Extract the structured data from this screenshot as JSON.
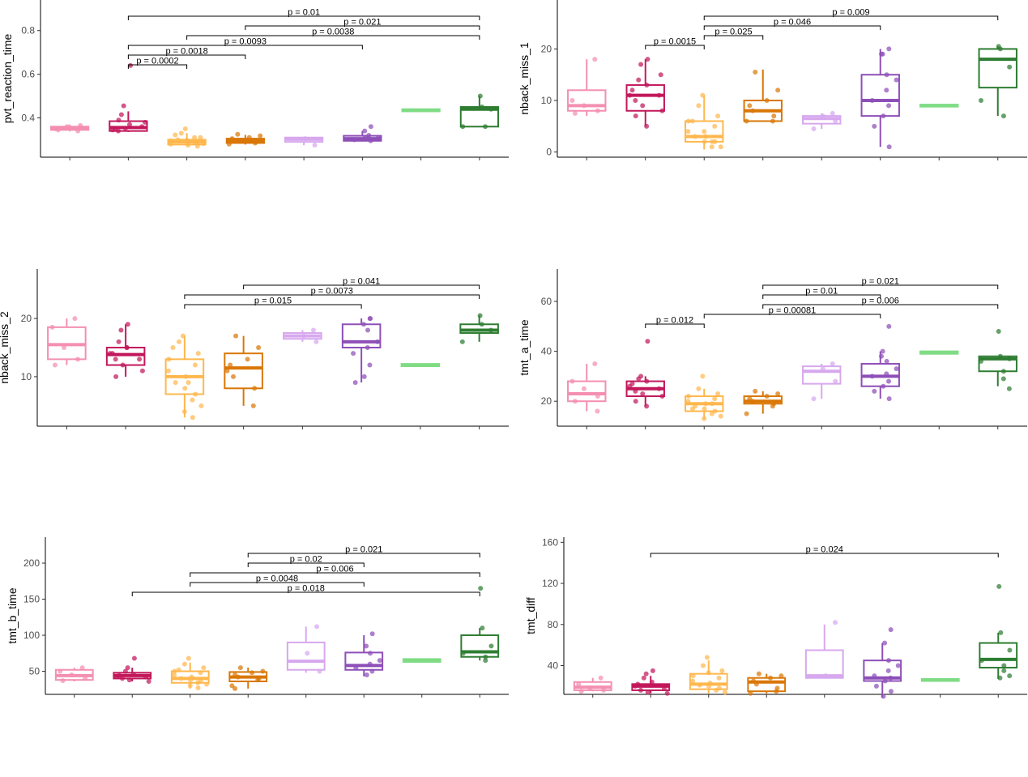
{
  "palette": [
    "#f48fb1",
    "#c2185b",
    "#ffb74d",
    "#d97706",
    "#d7a8ee",
    "#8e4fb8",
    "#7fdc84",
    "#2e7d32"
  ],
  "chart_data": [
    {
      "type": "box",
      "ylabel": "pvt_reaction_time",
      "ylim": [
        0.22,
        0.94
      ],
      "yticks": [
        0.4,
        0.6,
        0.8
      ],
      "ytick_labels": [
        "0.4",
        "0.6",
        "0.8"
      ],
      "groups": [
        {
          "q1": 0.345,
          "median": 0.352,
          "q3": 0.36,
          "wlo": 0.338,
          "whi": 0.37,
          "points": [
            0.34,
            0.35,
            0.36,
            0.355,
            0.345,
            0.365
          ]
        },
        {
          "q1": 0.34,
          "median": 0.356,
          "q3": 0.385,
          "wlo": 0.335,
          "whi": 0.43,
          "points": [
            0.64,
            0.455,
            0.415,
            0.37,
            0.35,
            0.345,
            0.36,
            0.34,
            0.352,
            0.38,
            0.39
          ]
        },
        {
          "q1": 0.278,
          "median": 0.29,
          "q3": 0.3,
          "wlo": 0.27,
          "whi": 0.33,
          "points": [
            0.35,
            0.33,
            0.31,
            0.295,
            0.285,
            0.28,
            0.275,
            0.3,
            0.29,
            0.27,
            0.31,
            0.282,
            0.298,
            0.288,
            0.322
          ]
        },
        {
          "q1": 0.285,
          "median": 0.295,
          "q3": 0.305,
          "wlo": 0.278,
          "whi": 0.322,
          "points": [
            0.325,
            0.318,
            0.31,
            0.3,
            0.295,
            0.29,
            0.285,
            0.28,
            0.305
          ]
        },
        {
          "q1": 0.29,
          "median": 0.302,
          "q3": 0.31,
          "wlo": 0.275,
          "whi": 0.31,
          "points": [
            0.275,
            0.305
          ]
        },
        {
          "q1": 0.295,
          "median": 0.305,
          "q3": 0.318,
          "wlo": 0.292,
          "whi": 0.34,
          "points": [
            0.36,
            0.34,
            0.32,
            0.31,
            0.305,
            0.3,
            0.295,
            0.312
          ]
        },
        {
          "q1": 0.43,
          "median": 0.435,
          "q3": 0.44,
          "wlo": 0.43,
          "whi": 0.44,
          "points": []
        },
        {
          "q1": 0.36,
          "median": 0.44,
          "q3": 0.45,
          "wlo": 0.36,
          "whi": 0.5,
          "points": [
            0.5,
            0.45,
            0.44,
            0.36,
            0.36
          ]
        }
      ],
      "comparisons": [
        {
          "from": 2,
          "to": 8,
          "p": "p = 0.01"
        },
        {
          "from": 4,
          "to": 8,
          "p": "p = 0.021"
        },
        {
          "from": 3,
          "to": 8,
          "p": "p = 0.0038"
        },
        {
          "from": 2,
          "to": 6,
          "p": "p = 0.0093"
        },
        {
          "from": 2,
          "to": 4,
          "p": "p = 0.0018"
        },
        {
          "from": 2,
          "to": 3,
          "p": "p = 0.0002"
        }
      ]
    },
    {
      "type": "box",
      "ylabel": "nback_miss_1",
      "ylim": [
        -1,
        29.5
      ],
      "yticks": [
        0,
        10,
        20
      ],
      "ytick_labels": [
        "0",
        "10",
        "20"
      ],
      "groups": [
        {
          "q1": 8,
          "median": 9,
          "q3": 12,
          "wlo": 7,
          "whi": 18,
          "points": [
            18,
            10,
            9,
            8,
            7.5
          ]
        },
        {
          "q1": 8,
          "median": 11,
          "q3": 13,
          "wlo": 5,
          "whi": 18,
          "points": [
            18,
            17,
            14,
            13,
            12,
            11,
            11,
            10,
            9,
            8,
            7,
            5,
            15
          ]
        },
        {
          "q1": 2,
          "median": 3,
          "q3": 6,
          "wlo": 0.5,
          "whi": 11,
          "points": [
            11,
            9,
            7,
            6,
            5,
            4,
            3,
            3,
            2,
            2,
            1,
            1,
            4,
            2,
            6
          ]
        },
        {
          "q1": 6,
          "median": 8,
          "q3": 10,
          "wlo": 6,
          "whi": 16,
          "points": [
            15.5,
            12,
            10,
            9,
            8,
            7,
            6,
            6
          ]
        },
        {
          "q1": 5.5,
          "median": 6.5,
          "q3": 7,
          "wlo": 4.5,
          "whi": 7.5,
          "points": [
            7.5,
            7,
            6,
            4.5
          ]
        },
        {
          "q1": 7,
          "median": 10,
          "q3": 15,
          "wlo": 1,
          "whi": 20,
          "points": [
            20,
            19,
            15,
            14,
            12,
            10,
            9,
            7,
            5,
            1,
            19
          ]
        },
        {
          "q1": 8.8,
          "median": 9,
          "q3": 9.2,
          "wlo": 8.8,
          "whi": 9.2,
          "points": []
        },
        {
          "q1": 12.5,
          "median": 18,
          "q3": 20,
          "wlo": 7,
          "whi": 20.5,
          "points": [
            20.5,
            20,
            16.5,
            10,
            7
          ]
        }
      ],
      "comparisons": [
        {
          "from": 3,
          "to": 8,
          "p": "p = 0.009"
        },
        {
          "from": 3,
          "to": 6,
          "p": "p = 0.046"
        },
        {
          "from": 3,
          "to": 4,
          "p": "p = 0.025"
        },
        {
          "from": 2,
          "to": 3,
          "p": "p = 0.0015"
        }
      ]
    },
    {
      "type": "box",
      "ylabel": "nback_miss_2",
      "ylim": [
        1.5,
        28.5
      ],
      "yticks": [
        10,
        20
      ],
      "ytick_labels": [
        "10",
        "20"
      ],
      "groups": [
        {
          "q1": 13,
          "median": 15.5,
          "q3": 18.5,
          "wlo": 12,
          "whi": 20,
          "points": [
            20,
            18.5,
            15,
            13,
            12
          ]
        },
        {
          "q1": 12,
          "median": 13.8,
          "q3": 15,
          "wlo": 10,
          "whi": 19,
          "points": [
            19,
            18,
            16,
            15,
            14,
            14,
            13,
            13,
            12,
            11,
            10,
            15
          ]
        },
        {
          "q1": 7,
          "median": 10,
          "q3": 13,
          "wlo": 3,
          "whi": 17,
          "points": [
            17,
            16,
            14,
            13,
            12,
            11,
            10,
            9,
            8,
            7,
            6,
            5,
            4,
            3,
            15,
            9
          ]
        },
        {
          "q1": 8,
          "median": 11.5,
          "q3": 14,
          "wlo": 5,
          "whi": 17,
          "points": [
            17,
            15,
            13,
            12,
            10,
            8,
            5,
            11
          ]
        },
        {
          "q1": 16.5,
          "median": 17,
          "q3": 17.5,
          "wlo": 16,
          "whi": 18,
          "points": [
            18,
            17,
            16
          ]
        },
        {
          "q1": 15,
          "median": 16,
          "q3": 19,
          "wlo": 9,
          "whi": 20,
          "points": [
            20,
            19,
            18,
            16,
            15,
            14,
            12,
            10,
            9,
            20
          ]
        },
        {
          "q1": 11.8,
          "median": 12,
          "q3": 12.2,
          "wlo": 11.8,
          "whi": 12.2,
          "points": []
        },
        {
          "q1": 17.5,
          "median": 18,
          "q3": 19,
          "wlo": 16,
          "whi": 20.5,
          "points": [
            20.5,
            19,
            18,
            16
          ]
        }
      ],
      "comparisons": [
        {
          "from": 4,
          "to": 8,
          "p": "p = 0.041"
        },
        {
          "from": 3,
          "to": 8,
          "p": "p = 0.0073"
        },
        {
          "from": 3,
          "to": 6,
          "p": "p = 0.015"
        }
      ]
    },
    {
      "type": "box",
      "ylabel": "tmt_a_time",
      "ylim": [
        10,
        73
      ],
      "yticks": [
        20,
        40,
        60
      ],
      "ytick_labels": [
        "20",
        "40",
        "60"
      ],
      "groups": [
        {
          "q1": 20,
          "median": 23,
          "q3": 28,
          "wlo": 16,
          "whi": 35,
          "points": [
            35,
            28,
            25,
            22,
            20,
            16
          ]
        },
        {
          "q1": 22,
          "median": 25,
          "q3": 28,
          "wlo": 18,
          "whi": 30,
          "points": [
            44,
            30,
            29,
            28,
            27,
            26,
            25,
            24,
            23,
            22,
            20,
            18
          ]
        },
        {
          "q1": 16,
          "median": 19,
          "q3": 22,
          "wlo": 13,
          "whi": 25,
          "points": [
            30,
            25,
            23,
            22,
            21,
            20,
            19,
            18,
            17,
            16,
            15,
            14,
            13,
            19,
            17
          ]
        },
        {
          "q1": 19,
          "median": 20,
          "q3": 22,
          "wlo": 15,
          "whi": 24,
          "points": [
            24,
            23,
            22,
            21,
            20,
            19,
            18,
            15
          ]
        },
        {
          "q1": 27,
          "median": 32,
          "q3": 34,
          "wlo": 21,
          "whi": 35,
          "points": [
            35,
            33,
            28,
            21
          ]
        },
        {
          "q1": 26,
          "median": 30,
          "q3": 35,
          "wlo": 21,
          "whi": 40,
          "points": [
            50,
            40,
            36,
            33,
            31,
            30,
            28,
            26,
            24,
            21,
            38
          ]
        },
        {
          "q1": 39,
          "median": 39.5,
          "q3": 40,
          "wlo": 39,
          "whi": 40,
          "points": []
        },
        {
          "q1": 32,
          "median": 37,
          "q3": 38,
          "wlo": 26,
          "whi": 38,
          "points": [
            48,
            38,
            37,
            36,
            32,
            29,
            25
          ]
        }
      ],
      "comparisons": [
        {
          "from": 4,
          "to": 8,
          "p": "p = 0.021"
        },
        {
          "from": 4,
          "to": 6,
          "p": "p = 0.01"
        },
        {
          "from": 4,
          "to": 8,
          "p": "p = 0.006"
        },
        {
          "from": 3,
          "to": 6,
          "p": "p = 0.00081"
        },
        {
          "from": 2,
          "to": 3,
          "p": "p = 0.012"
        }
      ]
    },
    {
      "type": "box",
      "ylabel": "tmt_b_time",
      "ylim": [
        18,
        236
      ],
      "yticks": [
        50,
        100,
        150,
        200
      ],
      "ytick_labels": [
        "50",
        "100",
        "150",
        "200"
      ],
      "groups": [
        {
          "q1": 38,
          "median": 44,
          "q3": 52,
          "wlo": 36,
          "whi": 55,
          "points": [
            55,
            50,
            45,
            40,
            37
          ]
        },
        {
          "q1": 40,
          "median": 44,
          "q3": 48,
          "wlo": 36,
          "whi": 55,
          "points": [
            68,
            55,
            50,
            46,
            44,
            43,
            42,
            40,
            38,
            36
          ]
        },
        {
          "q1": 34,
          "median": 40,
          "q3": 50,
          "wlo": 26,
          "whi": 62,
          "points": [
            68,
            60,
            55,
            50,
            48,
            45,
            42,
            40,
            38,
            36,
            34,
            32,
            30,
            27,
            52
          ]
        },
        {
          "q1": 36,
          "median": 42,
          "q3": 49,
          "wlo": 26,
          "whi": 55,
          "points": [
            55,
            50,
            48,
            45,
            42,
            40,
            38,
            30,
            26
          ]
        },
        {
          "q1": 52,
          "median": 64,
          "q3": 90,
          "wlo": 48,
          "whi": 112,
          "points": [
            112,
            75,
            50
          ]
        },
        {
          "q1": 52,
          "median": 58,
          "q3": 76,
          "wlo": 43,
          "whi": 100,
          "points": [
            102,
            85,
            75,
            65,
            60,
            55,
            50,
            45
          ]
        },
        {
          "q1": 63,
          "median": 65,
          "q3": 67,
          "wlo": 63,
          "whi": 67,
          "points": []
        },
        {
          "q1": 70,
          "median": 77,
          "q3": 100,
          "wlo": 65,
          "whi": 110,
          "points": [
            165,
            110,
            85,
            75,
            70,
            65
          ]
        }
      ],
      "comparisons": [
        {
          "from": 4,
          "to": 8,
          "p": "p = 0.021"
        },
        {
          "from": 4,
          "to": 6,
          "p": "p = 0.02"
        },
        {
          "from": 3,
          "to": 8,
          "p": "p = 0.006"
        },
        {
          "from": 3,
          "to": 6,
          "p": "p = 0.0048"
        },
        {
          "from": 2,
          "to": 8,
          "p": "p = 0.018"
        }
      ]
    },
    {
      "type": "box",
      "ylabel": "tmt_diff",
      "ylim": [
        12,
        165
      ],
      "yticks": [
        40,
        80,
        120,
        160
      ],
      "ytick_labels": [
        "40",
        "80",
        "120",
        "160"
      ],
      "groups": [
        {
          "q1": 16,
          "median": 19,
          "q3": 24,
          "wlo": 15,
          "whi": 28,
          "points": [
            28,
            22,
            18,
            16,
            15
          ]
        },
        {
          "q1": 16,
          "median": 20,
          "q3": 22,
          "wlo": 13,
          "whi": 30,
          "points": [
            35,
            32,
            28,
            24,
            22,
            20,
            18,
            16,
            14,
            13
          ]
        },
        {
          "q1": 17,
          "median": 22,
          "q3": 32,
          "wlo": 13,
          "whi": 45,
          "points": [
            48,
            40,
            35,
            30,
            28,
            25,
            23,
            21,
            20,
            18,
            16,
            14,
            33
          ]
        },
        {
          "q1": 15,
          "median": 24,
          "q3": 28,
          "wlo": 13,
          "whi": 32,
          "points": [
            32,
            30,
            28,
            25,
            22,
            18,
            15,
            13
          ]
        },
        {
          "q1": 28,
          "median": 30,
          "q3": 55,
          "wlo": 28,
          "whi": 80,
          "points": [
            82,
            30
          ]
        },
        {
          "q1": 25,
          "median": 28,
          "q3": 45,
          "wlo": 10,
          "whi": 62,
          "points": [
            75,
            62,
            45,
            40,
            35,
            30,
            28,
            25,
            20,
            15,
            10
          ]
        },
        {
          "q1": 25,
          "median": 26,
          "q3": 27,
          "wlo": 25,
          "whi": 27,
          "points": []
        },
        {
          "q1": 38,
          "median": 46,
          "q3": 62,
          "wlo": 27,
          "whi": 72,
          "points": [
            117,
            72,
            55,
            45,
            40,
            35,
            30,
            28
          ]
        }
      ],
      "comparisons": [
        {
          "from": 2,
          "to": 8,
          "p": "p = 0.024"
        }
      ]
    }
  ]
}
